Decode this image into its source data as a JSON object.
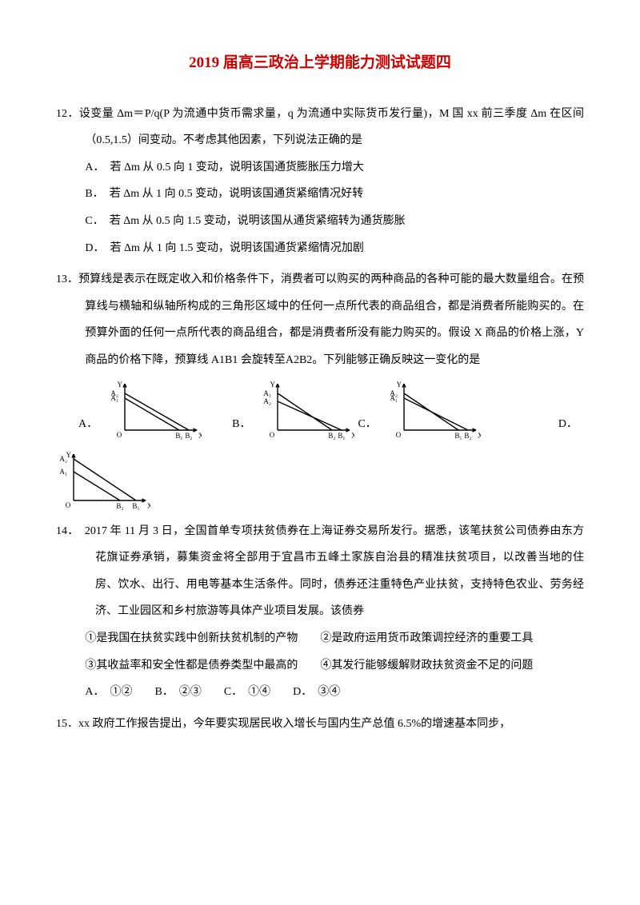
{
  "title": "2019 届高三政治上学期能力测试试题四",
  "q12": {
    "stem": "12．设变量 Δm＝P/q(P 为流通中货币需求量，q 为流通中实际货币发行量)，M 国 xx 前三季度 Δm 在区间（0.5,1.5）间变动。不考虑其他因素，下列说法正确的是",
    "A": "A．　若 Δm 从 0.5 向 1 变动，说明该国通货膨胀压力增大",
    "B": "B．　若 Δm 从 1 向 0.5 变动，说明该国通货紧缩情况好转",
    "C": "C．　若 Δm 从 0.5 向 1.5 变动，说明该国从通货紧缩转为通货膨胀",
    "D": "D．　若 Δm 从 1 向 1.5 变动，说明该国通货紧缩情况加剧"
  },
  "q13": {
    "stem": "13．预算线是表示在既定收入和价格条件下，消费者可以购买的两种商品的各种可能的最大数量组合。在预算线与横轴和纵轴所构成的三角形区域中的任何一点所代表的商品组合，都是消费者所能购买的。在预算外面的任何一点所代表的商品组合，都是消费者所没有能力购买的。假设 X 商品的价格上涨，Y 商品的价格下降，预算线 A1B1 会旋转至A2B2。下列能够正确反映这一变化的是",
    "labA": "A．",
    "labB": "B．",
    "labC": "C．",
    "labD": "D．"
  },
  "q14": {
    "stem1": "14．　2017 年 11 月 3 日，全国首单专项扶贫债券在上海证券交易所发行。据悉，该笔扶贫公司债券由东方花旗证券承销，募集资金将全部用于宜昌市五峰土家族自治县的精准扶贫项目，以改善当地的住房、饮水、出行、用电等基本生活条件。同时，债券还注重特色产业扶贫，支持特色农业、劳务经济、工业园区和乡村旅游等具体产业项目发展。该债券",
    "line1": "①是我国在扶贫实践中创新扶贫机制的产物　　②是政府运用货币政策调控经济的重要工具",
    "line2": "③其收益率和安全性都是债券类型中最高的　　④其发行能够缓解财政扶贫资金不足的问题",
    "opts": "A．　①②　　B．　②③　　C．　①④　　D．　③④"
  },
  "q15": {
    "stem": "15．xx 政府工作报告提出，今年要实现居民收入增长与国内生产总值 6.5%的增速基本同步，"
  },
  "chart": {
    "w": 118,
    "h": 78,
    "stroke": "#000000",
    "bg": "#ffffff",
    "y_label": "Y",
    "x_label": "X",
    "o_label": "O",
    "a1": "A₁",
    "a2": "A₂",
    "b1": "B₁",
    "b2": "B₂",
    "axis_fontsize": 9,
    "A": {
      "ya1": 24,
      "ya2": 18,
      "xb1": 68,
      "xb2": 80
    },
    "B": {
      "ya1": 18,
      "ya2": 28,
      "xb1": 68,
      "xb2": 80
    },
    "C": {
      "ya1": 24,
      "ya2": 18,
      "xb1": 80,
      "xb2": 68
    },
    "D": {
      "ya1": 12,
      "ya2": 28,
      "xb1": 78,
      "xb2": 58
    }
  }
}
